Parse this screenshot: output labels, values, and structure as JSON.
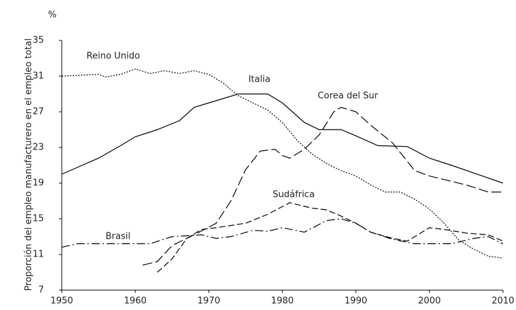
{
  "chart_data": {
    "type": "line",
    "y_label": "Proporción del empleo manufacturero en el empleo total",
    "unit_label": "%",
    "xlim": [
      1950,
      2010
    ],
    "xticks": [
      1950,
      1960,
      1970,
      1980,
      1990,
      2000,
      2010
    ],
    "ylim": [
      7,
      35
    ],
    "yticks": [
      7,
      11,
      15,
      19,
      23,
      27,
      31,
      35
    ],
    "series": [
      {
        "name": "Reino Unido",
        "color": "#000000",
        "x": [
          1950,
          1955,
          1956,
          1958,
          1960,
          1962,
          1964,
          1966,
          1968,
          1970,
          1972,
          1974,
          1976,
          1978,
          1980,
          1982,
          1984,
          1986,
          1988,
          1990,
          1992,
          1994,
          1996,
          1998,
          2000,
          2002,
          2004,
          2006,
          2008,
          2010
        ],
        "values": [
          31,
          31.2,
          30.9,
          31.2,
          31.8,
          31.3,
          31.6,
          31.3,
          31.6,
          31.2,
          30.2,
          28.8,
          28,
          27.2,
          25.8,
          23.8,
          22.3,
          21.2,
          20.4,
          19.8,
          18.8,
          18,
          18,
          17.2,
          16.1,
          14.5,
          12.6,
          11.6,
          10.8,
          10.6
        ]
      },
      {
        "name": "Italia",
        "color": "#000000",
        "x": [
          1950,
          1955,
          1958,
          1960,
          1963,
          1966,
          1968,
          1970,
          1974,
          1978,
          1980,
          1983,
          1985,
          1988,
          1990,
          1993,
          1997,
          2000,
          2003,
          2010
        ],
        "values": [
          20,
          21.8,
          23.2,
          24.2,
          25,
          26,
          27.5,
          28,
          29,
          29,
          28,
          25.8,
          25,
          25,
          24.3,
          23.2,
          23.1,
          21.8,
          21,
          19
        ]
      },
      {
        "name": "Corea del Sur",
        "color": "#000000",
        "x": [
          1961,
          1963,
          1965,
          1968,
          1971,
          1973,
          1975,
          1977,
          1979,
          1980,
          1981,
          1983,
          1985,
          1987,
          1988,
          1990,
          1992,
          1995,
          1998,
          2000,
          2002,
          2005,
          2008,
          2010
        ],
        "values": [
          9.8,
          10.2,
          12,
          13.2,
          14.5,
          17,
          20.5,
          22.6,
          22.8,
          22.1,
          21.8,
          22.8,
          24.4,
          27,
          27.5,
          27,
          25.5,
          23.5,
          20.4,
          19.8,
          19.4,
          18.8,
          18,
          18
        ]
      },
      {
        "name": "Sudáfrica",
        "color": "#000000",
        "x": [
          1963,
          1965,
          1967,
          1969,
          1971,
          1975,
          1978,
          1981,
          1984,
          1986,
          1988,
          1990,
          1992,
          1995,
          1997,
          2000,
          2002,
          2005,
          2008,
          2010
        ],
        "values": [
          9,
          10.5,
          12.8,
          13.8,
          14,
          14.5,
          15.5,
          16.8,
          16.2,
          16,
          15.3,
          14.5,
          13.5,
          12.8,
          12.5,
          14,
          13.8,
          13.4,
          13.2,
          12.5
        ]
      },
      {
        "name": "Brasil",
        "color": "#000000",
        "x": [
          1950,
          1952,
          1962,
          1965,
          1969,
          1971,
          1973,
          1976,
          1978,
          1980,
          1983,
          1986,
          1988,
          1990,
          1992,
          1995,
          1998,
          2003,
          2006,
          2008,
          2010
        ],
        "values": [
          11.8,
          12.2,
          12.2,
          13,
          13.2,
          12.8,
          13,
          13.7,
          13.6,
          14,
          13.5,
          14.8,
          15,
          14.5,
          13.5,
          12.7,
          12.2,
          12.2,
          12.8,
          13,
          12.2
        ]
      }
    ]
  }
}
